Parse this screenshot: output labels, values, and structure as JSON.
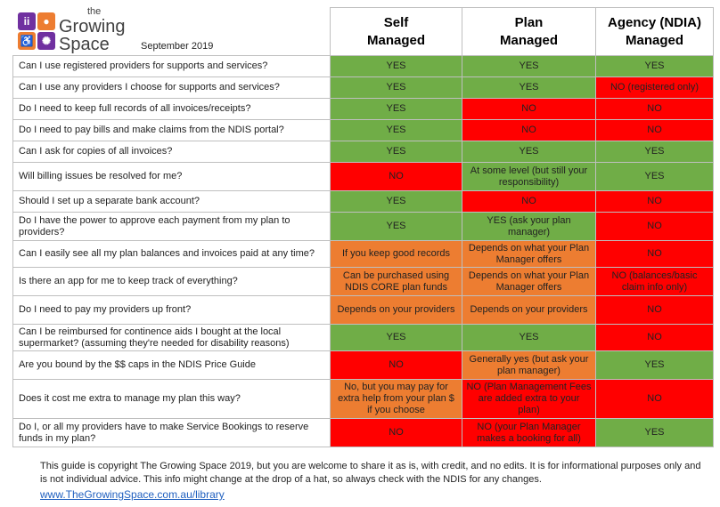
{
  "logo": {
    "line1": "the",
    "line2": "Growing",
    "line3": "Space",
    "tile_colors": [
      "#7030a0",
      "#ed7d31",
      "#ed7d31",
      "#7030a0"
    ]
  },
  "date": "September 2019",
  "columns": [
    {
      "line1": "Self",
      "line2": "Managed"
    },
    {
      "line1": "Plan",
      "line2": "Managed"
    },
    {
      "line1": "Agency (NDIA)",
      "line2": "Managed"
    }
  ],
  "colors": {
    "green": "#70ad47",
    "red": "#ff0000",
    "orange": "#ed7d31"
  },
  "rows": [
    {
      "q": "Can I use registered providers for supports and services?",
      "cells": [
        {
          "t": "YES",
          "c": "green"
        },
        {
          "t": "YES",
          "c": "green"
        },
        {
          "t": "YES",
          "c": "green"
        }
      ]
    },
    {
      "q": "Can I use any providers I choose for supports and services?",
      "cells": [
        {
          "t": "YES",
          "c": "green"
        },
        {
          "t": "YES",
          "c": "green"
        },
        {
          "t": "NO (registered only)",
          "c": "red"
        }
      ]
    },
    {
      "q": "Do I need to keep full records of all invoices/receipts?",
      "cells": [
        {
          "t": "YES",
          "c": "green"
        },
        {
          "t": "NO",
          "c": "red"
        },
        {
          "t": "NO",
          "c": "red"
        }
      ]
    },
    {
      "q": "Do I need to pay bills and make claims from the NDIS portal?",
      "cells": [
        {
          "t": "YES",
          "c": "green"
        },
        {
          "t": "NO",
          "c": "red"
        },
        {
          "t": "NO",
          "c": "red"
        }
      ]
    },
    {
      "q": "Can I ask for copies of all invoices?",
      "cells": [
        {
          "t": "YES",
          "c": "green"
        },
        {
          "t": "YES",
          "c": "green"
        },
        {
          "t": "YES",
          "c": "green"
        }
      ]
    },
    {
      "q": "Will billing issues be resolved for me?",
      "cells": [
        {
          "t": "NO",
          "c": "red"
        },
        {
          "t": "At some level (but still your responsibility)",
          "c": "green"
        },
        {
          "t": "YES",
          "c": "green"
        }
      ]
    },
    {
      "q": "Should I set up a separate bank account?",
      "cells": [
        {
          "t": "YES",
          "c": "green"
        },
        {
          "t": "NO",
          "c": "red"
        },
        {
          "t": "NO",
          "c": "red"
        }
      ]
    },
    {
      "q": "Do I have the power to approve each payment from my plan to providers?",
      "cells": [
        {
          "t": "YES",
          "c": "green"
        },
        {
          "t": "YES (ask your plan manager)",
          "c": "green"
        },
        {
          "t": "NO",
          "c": "red"
        }
      ]
    },
    {
      "q": "Can I easily see all my plan balances and invoices paid at any time?",
      "cells": [
        {
          "t": "If you keep good records",
          "c": "orange"
        },
        {
          "t": "Depends on what your Plan Manager offers",
          "c": "orange"
        },
        {
          "t": "NO",
          "c": "red"
        }
      ]
    },
    {
      "q": "Is there an app for me to keep track of everything?",
      "cells": [
        {
          "t": "Can be purchased using NDIS CORE plan funds",
          "c": "orange"
        },
        {
          "t": "Depends on what your Plan Manager offers",
          "c": "orange"
        },
        {
          "t": "NO (balances/basic claim info only)",
          "c": "red"
        }
      ]
    },
    {
      "q": "Do I need to pay my providers up front?",
      "cells": [
        {
          "t": "Depends on your providers",
          "c": "orange"
        },
        {
          "t": "Depends on your providers",
          "c": "orange"
        },
        {
          "t": "NO",
          "c": "red"
        }
      ]
    },
    {
      "q": "Can I be reimbursed for continence aids I bought at the local supermarket? (assuming they're needed for disability reasons)",
      "cells": [
        {
          "t": "YES",
          "c": "green"
        },
        {
          "t": "YES",
          "c": "green"
        },
        {
          "t": "NO",
          "c": "red"
        }
      ]
    },
    {
      "q": "Are you bound by the $$ caps in the NDIS Price Guide",
      "cells": [
        {
          "t": "NO",
          "c": "red"
        },
        {
          "t": "Generally yes (but ask your plan manager)",
          "c": "orange"
        },
        {
          "t": "YES",
          "c": "green"
        }
      ]
    },
    {
      "q": "Does it cost me extra to manage my plan this way?",
      "cells": [
        {
          "t": "No, but you may pay for extra help from your plan $ if you choose",
          "c": "orange"
        },
        {
          "t": "NO (Plan Management Fees are added extra to your plan)",
          "c": "red"
        },
        {
          "t": "NO",
          "c": "red"
        }
      ]
    },
    {
      "q": "Do I, or all my providers have to make Service Bookings to reserve funds in my plan?",
      "cells": [
        {
          "t": "NO",
          "c": "red"
        },
        {
          "t": "NO (your Plan Manager makes a booking for all)",
          "c": "red"
        },
        {
          "t": "YES",
          "c": "green"
        }
      ]
    }
  ],
  "footer": {
    "text": "This guide is copyright The Growing Space 2019, but you are welcome to share it as is, with credit, and no edits. It is for informational purposes only and is not individual advice. This info might change at the drop of a hat, so always check with the NDIS for any changes.",
    "link": "www.TheGrowingSpace.com.au/library"
  }
}
